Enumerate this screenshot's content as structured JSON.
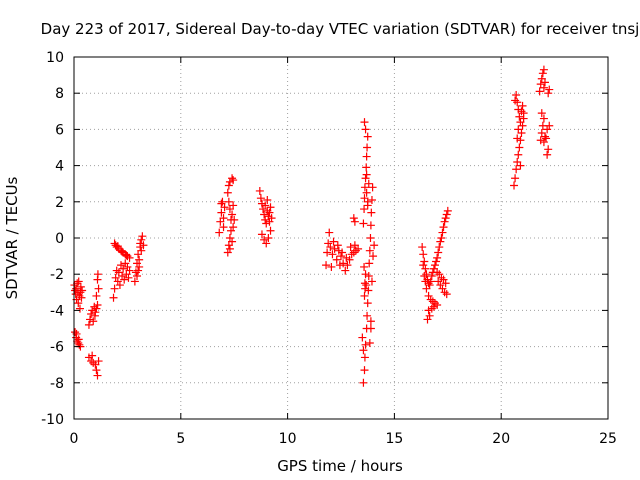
{
  "chart_data": {
    "type": "scatter",
    "title": "Day 223 of 2017, Sidereal Day-to-day VTEC variation (SDTVAR) for receiver tnsj",
    "xlabel": "GPS time / hours",
    "ylabel": "SDTVAR / TECUs",
    "xlim": [
      0,
      25
    ],
    "ylim": [
      -10,
      10
    ],
    "xticks": [
      0,
      5,
      10,
      15,
      20,
      25
    ],
    "yticks": [
      -10,
      -8,
      -6,
      -4,
      -2,
      0,
      2,
      4,
      6,
      8,
      10
    ],
    "grid": true,
    "legend": "none",
    "marker": "+",
    "color": "#ff0000",
    "series": [
      {
        "values": [
          [
            0.02,
            -2.6
          ],
          [
            0.05,
            -2.9
          ],
          [
            0.08,
            -3.1
          ],
          [
            0.1,
            -2.8
          ],
          [
            0.12,
            -3.4
          ],
          [
            0.15,
            -2.5
          ],
          [
            0.18,
            -3.0
          ],
          [
            0.2,
            -3.6
          ],
          [
            0.22,
            -2.4
          ],
          [
            0.25,
            -3.2
          ],
          [
            0.28,
            -3.9
          ],
          [
            0.3,
            -3.0
          ],
          [
            0.32,
            -2.7
          ],
          [
            0.35,
            -3.3
          ],
          [
            0.38,
            -2.9
          ],
          [
            0.05,
            -5.2
          ],
          [
            0.1,
            -5.5
          ],
          [
            0.15,
            -5.7
          ],
          [
            0.2,
            -5.8
          ],
          [
            0.25,
            -5.9
          ],
          [
            0.3,
            -6.0
          ],
          [
            0.12,
            -5.3
          ],
          [
            0.22,
            -5.6
          ],
          [
            0.7,
            -4.8
          ],
          [
            0.75,
            -4.5
          ],
          [
            0.8,
            -4.2
          ],
          [
            0.85,
            -4.0
          ],
          [
            0.9,
            -4.6
          ],
          [
            0.95,
            -3.8
          ],
          [
            1.0,
            -4.1
          ],
          [
            1.05,
            -3.9
          ],
          [
            1.1,
            -3.7
          ],
          [
            1.15,
            -2.8
          ],
          [
            1.1,
            -2.3
          ],
          [
            1.12,
            -2.0
          ],
          [
            1.05,
            -3.2
          ],
          [
            0.98,
            -4.3
          ],
          [
            0.7,
            -6.6
          ],
          [
            0.8,
            -6.8
          ],
          [
            0.9,
            -6.9
          ],
          [
            1.0,
            -7.0
          ],
          [
            1.05,
            -7.3
          ],
          [
            1.1,
            -7.6
          ],
          [
            1.15,
            -6.8
          ],
          [
            0.85,
            -6.5
          ],
          [
            1.85,
            -3.3
          ],
          [
            1.9,
            -2.8
          ],
          [
            1.95,
            -2.2
          ],
          [
            2.0,
            -1.8
          ],
          [
            2.05,
            -2.4
          ],
          [
            2.1,
            -1.9
          ],
          [
            2.15,
            -2.6
          ],
          [
            2.2,
            -1.5
          ],
          [
            2.25,
            -2.1
          ],
          [
            2.3,
            -1.7
          ],
          [
            2.35,
            -2.3
          ],
          [
            2.4,
            -1.4
          ],
          [
            2.45,
            -2.0
          ],
          [
            2.5,
            -1.6
          ],
          [
            2.55,
            -2.2
          ],
          [
            2.6,
            -1.8
          ],
          [
            1.9,
            -0.3
          ],
          [
            1.95,
            -0.4
          ],
          [
            2.0,
            -0.5
          ],
          [
            2.1,
            -0.6
          ],
          [
            2.2,
            -0.7
          ],
          [
            2.3,
            -0.8
          ],
          [
            2.4,
            -0.9
          ],
          [
            2.5,
            -1.0
          ],
          [
            2.6,
            -1.1
          ],
          [
            2.05,
            -0.45
          ],
          [
            2.25,
            -0.75
          ],
          [
            2.45,
            -0.95
          ],
          [
            2.85,
            -2.4
          ],
          [
            2.9,
            -1.9
          ],
          [
            2.95,
            -1.4
          ],
          [
            3.0,
            -0.9
          ],
          [
            3.05,
            -1.6
          ],
          [
            3.1,
            -0.5
          ],
          [
            3.15,
            -0.1
          ],
          [
            3.2,
            0.1
          ],
          [
            3.25,
            -0.4
          ],
          [
            2.95,
            -2.1
          ],
          [
            3.05,
            -1.2
          ],
          [
            3.15,
            -0.7
          ],
          [
            3.0,
            -1.8
          ],
          [
            3.1,
            -0.3
          ],
          [
            6.8,
            0.3
          ],
          [
            6.85,
            0.9
          ],
          [
            6.9,
            1.4
          ],
          [
            6.95,
            2.0
          ],
          [
            7.0,
            1.1
          ],
          [
            7.05,
            1.7
          ],
          [
            7.0,
            0.6
          ],
          [
            6.9,
            1.9
          ],
          [
            7.2,
            -0.8
          ],
          [
            7.25,
            -0.4
          ],
          [
            7.3,
            0.0
          ],
          [
            7.35,
            0.4
          ],
          [
            7.4,
            -0.2
          ],
          [
            7.45,
            0.6
          ],
          [
            7.5,
            1.0
          ],
          [
            7.4,
            1.3
          ],
          [
            7.3,
            1.6
          ],
          [
            7.25,
            2.0
          ],
          [
            7.2,
            2.5
          ],
          [
            7.25,
            2.9
          ],
          [
            7.3,
            3.1
          ],
          [
            7.4,
            3.3
          ],
          [
            7.45,
            3.2
          ],
          [
            7.35,
            1.0
          ],
          [
            7.45,
            1.8
          ],
          [
            7.3,
            -0.6
          ],
          [
            8.7,
            2.6
          ],
          [
            8.75,
            2.2
          ],
          [
            8.8,
            1.9
          ],
          [
            8.85,
            1.6
          ],
          [
            8.9,
            1.3
          ],
          [
            8.95,
            1.0
          ],
          [
            9.0,
            0.8
          ],
          [
            9.05,
            1.5
          ],
          [
            9.1,
            1.2
          ],
          [
            9.15,
            0.9
          ],
          [
            9.2,
            1.7
          ],
          [
            9.25,
            1.1
          ],
          [
            8.8,
            0.2
          ],
          [
            8.9,
            -0.1
          ],
          [
            9.0,
            -0.3
          ],
          [
            9.1,
            0.0
          ],
          [
            9.2,
            0.4
          ],
          [
            8.95,
            1.8
          ],
          [
            9.05,
            2.1
          ],
          [
            9.15,
            1.4
          ],
          [
            11.8,
            -1.5
          ],
          [
            11.85,
            -0.8
          ],
          [
            11.9,
            -0.3
          ],
          [
            11.95,
            0.3
          ],
          [
            12.0,
            -0.5
          ],
          [
            12.1,
            -0.9
          ],
          [
            12.2,
            -0.6
          ],
          [
            12.3,
            -1.2
          ],
          [
            12.4,
            -0.7
          ],
          [
            12.5,
            -1.0
          ],
          [
            12.6,
            -1.4
          ],
          [
            12.7,
            -1.8
          ],
          [
            12.8,
            -1.5
          ],
          [
            12.9,
            -1.2
          ],
          [
            13.0,
            -0.9
          ],
          [
            13.1,
            -0.8
          ],
          [
            13.2,
            -0.7
          ],
          [
            13.3,
            -0.6
          ],
          [
            12.15,
            -0.2
          ],
          [
            12.35,
            -0.4
          ],
          [
            12.55,
            -0.8
          ],
          [
            12.75,
            -1.1
          ],
          [
            12.95,
            -0.5
          ],
          [
            13.15,
            -0.4
          ],
          [
            12.05,
            -1.6
          ],
          [
            12.45,
            -1.5
          ],
          [
            13.1,
            1.1
          ],
          [
            13.15,
            0.9
          ],
          [
            13.55,
            -8.0
          ],
          [
            13.6,
            -7.3
          ],
          [
            13.62,
            -6.6
          ],
          [
            13.65,
            -5.9
          ],
          [
            13.7,
            -5.0
          ],
          [
            13.72,
            -4.3
          ],
          [
            13.75,
            -3.6
          ],
          [
            13.78,
            -2.9
          ],
          [
            13.8,
            -2.1
          ],
          [
            13.82,
            -1.4
          ],
          [
            13.85,
            -0.7
          ],
          [
            13.88,
            0.0
          ],
          [
            13.9,
            0.7
          ],
          [
            13.92,
            1.4
          ],
          [
            13.95,
            2.1
          ],
          [
            13.98,
            2.8
          ],
          [
            13.6,
            -3.2
          ],
          [
            13.62,
            -2.5
          ],
          [
            13.65,
            -2.0
          ],
          [
            13.68,
            -2.6
          ],
          [
            13.58,
            -1.6
          ],
          [
            13.63,
            -2.8
          ],
          [
            13.55,
            0.8
          ],
          [
            13.58,
            1.6
          ],
          [
            13.6,
            2.2
          ],
          [
            13.62,
            2.8
          ],
          [
            13.65,
            3.3
          ],
          [
            13.68,
            3.9
          ],
          [
            13.7,
            4.5
          ],
          [
            13.72,
            5.0
          ],
          [
            13.75,
            5.6
          ],
          [
            13.6,
            6.4
          ],
          [
            13.65,
            6.0
          ],
          [
            13.7,
            2.5
          ],
          [
            13.75,
            1.8
          ],
          [
            13.8,
            3.0
          ],
          [
            13.7,
            3.5
          ],
          [
            13.75,
            2.0
          ],
          [
            13.5,
            -5.5
          ],
          [
            13.55,
            -6.2
          ],
          [
            13.9,
            -5.0
          ],
          [
            13.85,
            -5.8
          ],
          [
            13.9,
            -4.6
          ],
          [
            14.0,
            -1.0
          ],
          [
            14.05,
            -0.4
          ],
          [
            13.95,
            -2.4
          ],
          [
            16.3,
            -0.5
          ],
          [
            16.35,
            -0.9
          ],
          [
            16.4,
            -1.3
          ],
          [
            16.45,
            -1.7
          ],
          [
            16.5,
            -2.0
          ],
          [
            16.55,
            -2.3
          ],
          [
            16.6,
            -2.5
          ],
          [
            16.65,
            -2.6
          ],
          [
            16.7,
            -2.4
          ],
          [
            16.75,
            -2.1
          ],
          [
            16.8,
            -1.9
          ],
          [
            16.85,
            -1.7
          ],
          [
            16.9,
            -1.5
          ],
          [
            16.95,
            -1.3
          ],
          [
            17.0,
            -1.1
          ],
          [
            17.05,
            -0.8
          ],
          [
            17.1,
            -0.5
          ],
          [
            17.15,
            -0.2
          ],
          [
            17.2,
            0.0
          ],
          [
            17.25,
            0.3
          ],
          [
            17.3,
            0.6
          ],
          [
            17.35,
            0.9
          ],
          [
            17.4,
            1.1
          ],
          [
            17.45,
            1.3
          ],
          [
            17.5,
            1.5
          ],
          [
            16.5,
            -2.8
          ],
          [
            16.6,
            -3.2
          ],
          [
            16.7,
            -3.4
          ],
          [
            16.8,
            -3.5
          ],
          [
            16.9,
            -3.6
          ],
          [
            17.0,
            -3.7
          ],
          [
            16.6,
            -4.0
          ],
          [
            16.65,
            -4.3
          ],
          [
            16.55,
            -4.5
          ],
          [
            16.75,
            -3.9
          ],
          [
            16.85,
            -3.8
          ],
          [
            17.05,
            -2.4
          ],
          [
            17.15,
            -2.6
          ],
          [
            17.25,
            -2.8
          ],
          [
            17.35,
            -3.0
          ],
          [
            17.45,
            -3.1
          ],
          [
            17.0,
            -1.9
          ],
          [
            17.1,
            -2.0
          ],
          [
            17.2,
            -2.2
          ],
          [
            17.3,
            -2.3
          ],
          [
            17.4,
            -2.5
          ],
          [
            16.4,
            -2.1
          ],
          [
            16.45,
            -2.4
          ],
          [
            16.35,
            -1.5
          ],
          [
            20.6,
            2.9
          ],
          [
            20.65,
            3.3
          ],
          [
            20.7,
            3.8
          ],
          [
            20.75,
            4.2
          ],
          [
            20.8,
            4.6
          ],
          [
            20.85,
            5.0
          ],
          [
            20.9,
            5.4
          ],
          [
            20.95,
            5.8
          ],
          [
            21.0,
            6.2
          ],
          [
            21.05,
            6.6
          ],
          [
            20.7,
            7.9
          ],
          [
            20.75,
            7.5
          ],
          [
            20.8,
            7.1
          ],
          [
            20.85,
            6.7
          ],
          [
            20.9,
            6.4
          ],
          [
            20.95,
            7.0
          ],
          [
            21.0,
            7.3
          ],
          [
            21.05,
            6.9
          ],
          [
            20.65,
            7.6
          ],
          [
            20.8,
            6.0
          ],
          [
            20.9,
            4.0
          ],
          [
            20.75,
            5.5
          ],
          [
            21.85,
            5.4
          ],
          [
            21.9,
            5.8
          ],
          [
            21.95,
            6.2
          ],
          [
            22.0,
            6.6
          ],
          [
            22.05,
            5.6
          ],
          [
            21.9,
            6.9
          ],
          [
            22.0,
            5.3
          ],
          [
            21.8,
            8.1
          ],
          [
            21.85,
            8.5
          ],
          [
            21.9,
            8.8
          ],
          [
            21.95,
            9.1
          ],
          [
            22.0,
            9.3
          ],
          [
            22.05,
            8.6
          ],
          [
            22.0,
            8.3
          ],
          [
            22.15,
            4.6
          ],
          [
            22.2,
            4.9
          ],
          [
            22.25,
            6.2
          ],
          [
            22.2,
            8.0
          ],
          [
            22.25,
            8.2
          ],
          [
            22.1,
            5.5
          ],
          [
            22.15,
            6.0
          ]
        ]
      }
    ]
  }
}
